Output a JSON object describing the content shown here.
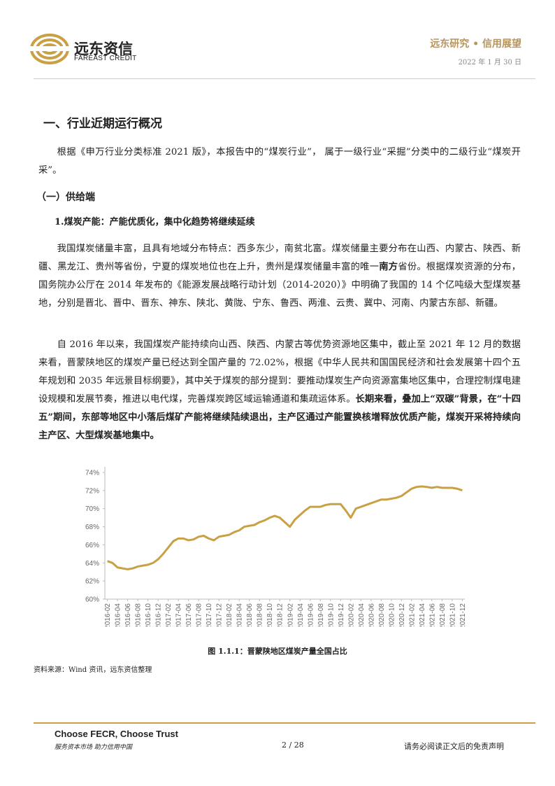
{
  "header": {
    "brand_cn": "远东资信",
    "brand_en": "FAREAST CREDIT",
    "series": "远东研究 • 信用展望",
    "date": "2022 年 1 月 30 日"
  },
  "body": {
    "section_title": "一、行业近期运行概况",
    "intro": "根据《申万行业分类标准 2021 版》，本报告中的“煤炭行业”， 属于一级行业“采掘”分类中的二级行业“煤炭开采”。",
    "subsection": "（一）供给端",
    "point_title": "1.煤炭产能：产能优质化，集中化趋势将继续延续",
    "paragraphs": [
      [
        {
          "text": "我国煤炭储量丰富，且具有地域分布特点：西多东少，南贫北富。煤炭储量主要分布在山西、内蒙古、陕西、新疆、黑龙江、贵州等省份，宁夏的煤炭地位也在上升，贵州是煤炭储量丰富的唯一"
        },
        {
          "text": "南方",
          "bold": true
        },
        {
          "text": "省份。根据煤炭资源的分布，国务院办公厅在 2014 年发布的《能源发展战略行动计划（2014-2020）》中明确了我国的 14 个亿吨级大型煤炭基地，分别是晋北、晋中、晋东、神东、陕北、黄陇、宁东、鲁西、两淮、云贵、冀中、河南、内蒙古东部、新疆。"
        }
      ],
      [
        {
          "text": "自 2016 年以来，我国煤炭产能持续向山西、陕西、内蒙古等优势资源地区集中，截止至 2021 年 12 月的数据来看，晋蒙陕地区的煤炭产量已经达到全国产量的 72.02%，根据《中华人民共和国国民经济和社会发展第十四个五年规划和 2035 年远景目标纲要》，其中关于煤炭的部分提到：要推动煤炭生产向资源富集地区集中，合理控制煤电建设规模和发展节奏，推进以电代煤，完善煤炭跨区域运输通道和集疏运体系。"
        },
        {
          "text": "长期来看，叠加上“双碳”背景，在“十四五”期间，东部等地区中小落后煤矿产能将继续陆续退出，主产区通过产能置换核增释放优质产能，煤炭开采将持续向主产区、大型煤炭基地集中。",
          "bold": true
        }
      ]
    ],
    "caption": "图 1.1.1：晋蒙陕地区煤炭产量全国占比",
    "source": "资料来源：Wind 资讯，远东资信整理"
  },
  "chart_data": {
    "type": "line",
    "categories": [
      "2016-02",
      null,
      "2016-04",
      null,
      "2016-06",
      null,
      "2016-08",
      null,
      "2016-10",
      null,
      "2016-12",
      null,
      "2017-02",
      null,
      "2017-04",
      null,
      "2017-06",
      null,
      "2017-08",
      null,
      "2017-10",
      null,
      "2017-12",
      null,
      "2018-02",
      null,
      "2018-04",
      null,
      "2018-06",
      null,
      "2018-08",
      null,
      "2018-10",
      null,
      "2018-12",
      null,
      "2019-02",
      null,
      "2019-04",
      null,
      "2019-06",
      null,
      "2019-08",
      null,
      "2019-10",
      null,
      "2019-12",
      null,
      "2020-02",
      null,
      "2020-04",
      null,
      "2020-06",
      null,
      "2020-08",
      null,
      "2020-10",
      null,
      "2020-12",
      null,
      "2021-02",
      null,
      "2021-04",
      null,
      "2021-06",
      null,
      "2021-08",
      null,
      "2021-10",
      null,
      "2021-12"
    ],
    "series": [
      {
        "name": "晋蒙陕地区煤炭产量全国占比",
        "color": "#c9a043",
        "values": [
          64.2,
          64.0,
          63.5,
          63.4,
          63.3,
          63.4,
          63.6,
          63.7,
          63.8,
          64.0,
          64.4,
          65.0,
          65.7,
          66.4,
          66.7,
          66.7,
          66.5,
          66.6,
          66.9,
          67.0,
          66.7,
          66.5,
          66.9,
          67.0,
          67.1,
          67.4,
          67.6,
          68.0,
          68.1,
          68.2,
          68.5,
          68.7,
          69.0,
          69.2,
          69.0,
          68.5,
          68.0,
          68.8,
          69.3,
          69.8,
          70.2,
          70.2,
          70.2,
          70.4,
          70.5,
          70.5,
          70.5,
          69.8,
          69.0,
          70.0,
          70.2,
          70.4,
          70.6,
          70.8,
          71.0,
          71.0,
          71.1,
          71.2,
          71.4,
          71.8,
          72.2,
          72.4,
          72.45,
          72.4,
          72.3,
          72.4,
          72.3,
          72.3,
          72.3,
          72.2,
          72.02
        ]
      }
    ],
    "ylim": [
      60,
      74
    ],
    "yticks": [
      {
        "value": 60,
        "label": "60%"
      },
      {
        "value": 62,
        "label": "62%"
      },
      {
        "value": 64,
        "label": "64%"
      },
      {
        "value": 66,
        "label": "66%"
      },
      {
        "value": 68,
        "label": "68%"
      },
      {
        "value": 70,
        "label": "70%"
      },
      {
        "value": 72,
        "label": "72%"
      },
      {
        "value": 74,
        "label": "74%"
      }
    ],
    "grid": false
  },
  "footer": {
    "slogan_en": "Choose FECR, Choose Trust",
    "slogan_cn": "服务资本市场 助力信用中国",
    "page": "2 / 28",
    "disclaimer": "请务必阅读正文后的免责声明"
  }
}
